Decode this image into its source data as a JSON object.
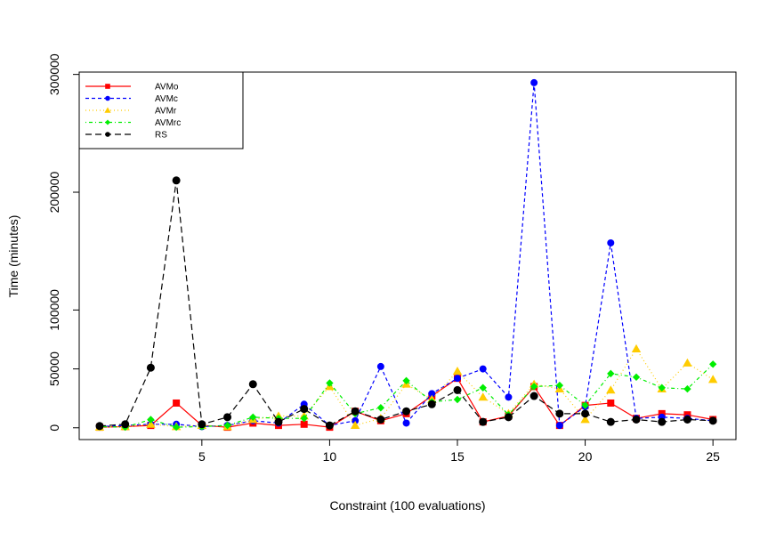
{
  "chart_data": {
    "type": "line",
    "xlabel": "Constraint (100 evaluations)",
    "ylabel": "Time (minutes)",
    "xlim": [
      0.2,
      25.9
    ],
    "ylim": [
      -10000,
      302000
    ],
    "x_ticks": [
      5,
      10,
      15,
      20,
      25
    ],
    "y_ticks": [
      0,
      50000,
      100000,
      200000,
      300000
    ],
    "y_tick_labels": [
      "0",
      "50000",
      "100000",
      "200000",
      "300000"
    ],
    "grid": false,
    "legend_position": "top-left",
    "x": [
      1,
      2,
      3,
      4,
      5,
      6,
      7,
      8,
      9,
      10,
      11,
      12,
      13,
      14,
      15,
      16,
      17,
      18,
      19,
      20,
      21,
      22,
      23,
      24,
      25
    ],
    "series": [
      {
        "name": "AVMo",
        "color": "#ff0000",
        "dash": "solid",
        "marker": "square",
        "values": [
          500,
          1000,
          2000,
          21000,
          2000,
          500,
          4000,
          2000,
          3000,
          500,
          14000,
          6000,
          12000,
          27000,
          42000,
          5000,
          10000,
          35000,
          2000,
          19000,
          21000,
          8000,
          12000,
          11000,
          7000
        ]
      },
      {
        "name": "AVMc",
        "color": "#0000ff",
        "dash": "dashed",
        "marker": "circle",
        "values": [
          1000,
          2000,
          3000,
          3000,
          1000,
          2000,
          6000,
          4000,
          20000,
          2000,
          6000,
          52000,
          4000,
          29000,
          42000,
          50000,
          26000,
          293000,
          2000,
          18000,
          157000,
          8000,
          9000,
          8000,
          6000
        ]
      },
      {
        "name": "AVMr",
        "color": "#ffcc00",
        "dash": "dotted",
        "marker": "triangle",
        "values": [
          500,
          1000,
          3000,
          1000,
          2000,
          1000,
          7000,
          10000,
          10000,
          35000,
          2000,
          8000,
          37000,
          24000,
          48000,
          26000,
          12000,
          37000,
          33000,
          7000,
          32000,
          67000,
          33000,
          55000,
          41000
        ]
      },
      {
        "name": "AVMrc",
        "color": "#00ee00",
        "dash": "dotdash",
        "marker": "diamond",
        "values": [
          1000,
          500,
          7000,
          500,
          1000,
          2000,
          9000,
          8000,
          8000,
          38000,
          12000,
          17000,
          40000,
          22000,
          24000,
          34000,
          11000,
          35000,
          36000,
          19000,
          46000,
          43000,
          34000,
          33000,
          54000
        ]
      },
      {
        "name": "RS",
        "color": "#000000",
        "dash": "longdash",
        "marker": "circle",
        "values": [
          1500,
          3000,
          51000,
          210000,
          3000,
          9000,
          37000,
          5000,
          16000,
          2000,
          14000,
          7000,
          14000,
          20000,
          32000,
          5000,
          9000,
          27000,
          12000,
          12000,
          5000,
          7000,
          5000,
          7000,
          6000
        ]
      }
    ]
  }
}
